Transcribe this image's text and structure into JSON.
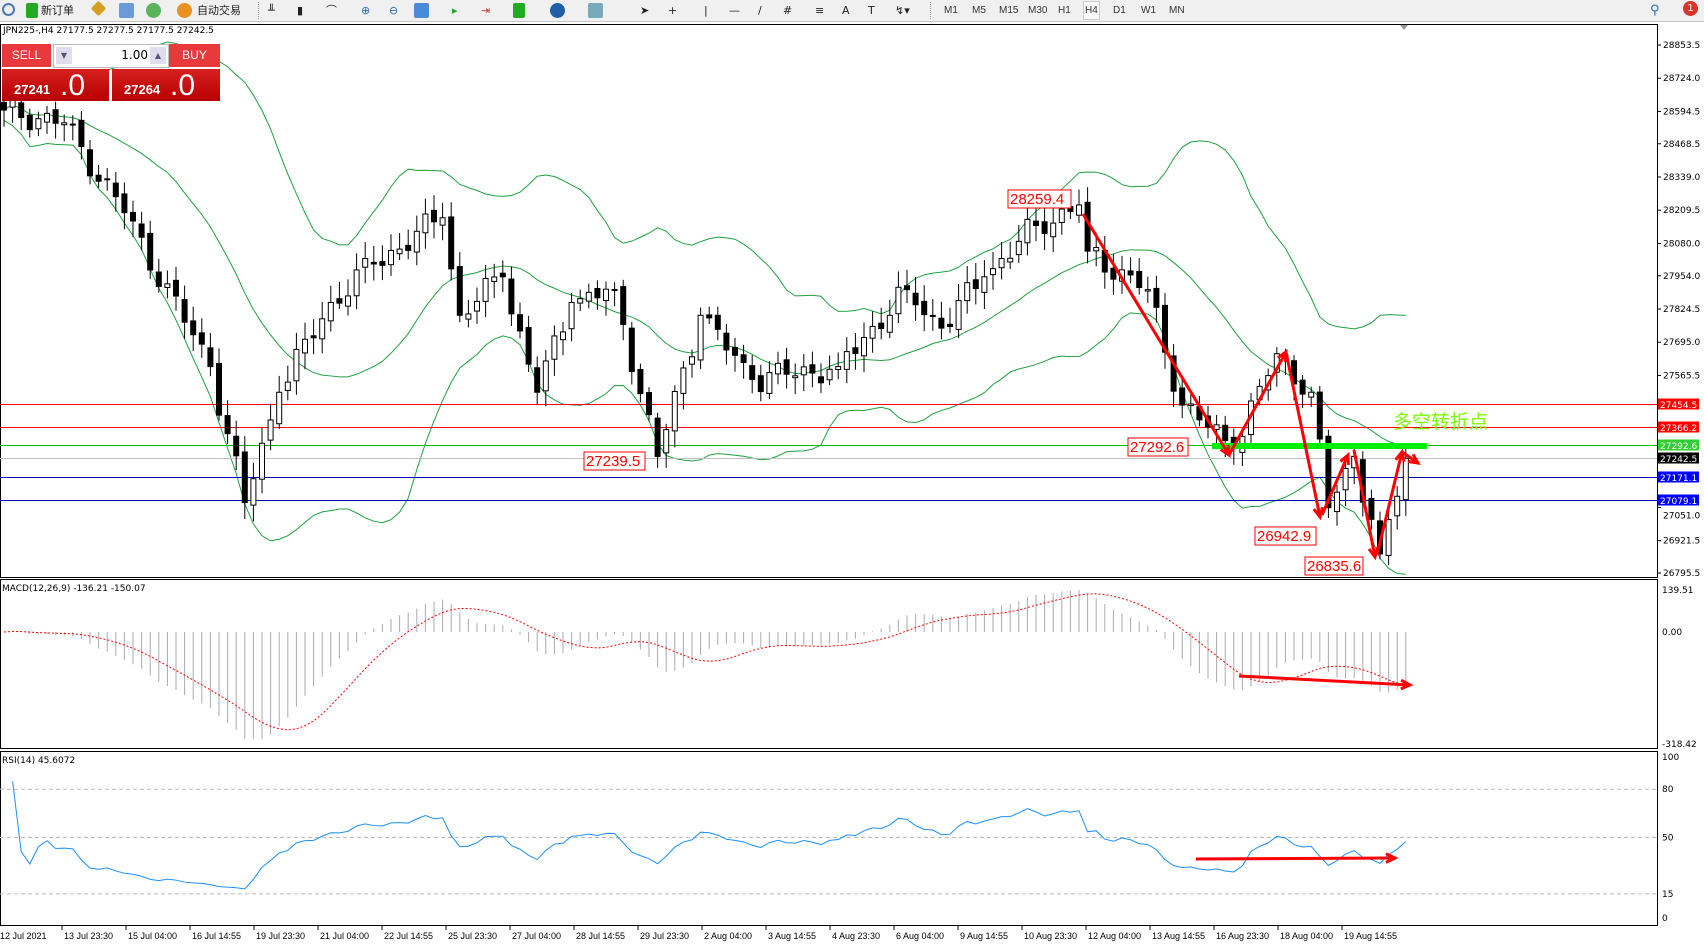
{
  "toolbar": {
    "new_order": "新订单",
    "auto_trading": "自动交易",
    "timeframes": [
      "M1",
      "M5",
      "M15",
      "M30",
      "H1",
      "H4",
      "D1",
      "W1",
      "MN"
    ],
    "active_timeframe": "H4",
    "notification_count": "1"
  },
  "chart_info": "JPN225-,H4  27177.5 27277.5 27177.5 27242.5",
  "trade_panel": {
    "sell_label": "SELL",
    "buy_label": "BUY",
    "lot": "1.00",
    "sell_price_small": "27241",
    "sell_price_big": ".0",
    "buy_price_small": "27264",
    "buy_price_big": ".0"
  },
  "price_axis": [
    "28853.5",
    "28724.0",
    "28594.5",
    "28468.5",
    "28339.0",
    "28209.5",
    "28080.0",
    "27954.0",
    "27824.5",
    "27695.0",
    "27565.5",
    "27051.0",
    "26921.5",
    "26795.5"
  ],
  "levels": [
    {
      "value": "27454.5",
      "color": "#ff0000",
      "bg": "#ff0000"
    },
    {
      "value": "27366.2",
      "color": "#ff0000",
      "bg": "#ff0000"
    },
    {
      "value": "27292.6",
      "color": "#00c000",
      "bg": "#32cd32"
    },
    {
      "value": "27242.5",
      "color": "#c0c0c0",
      "bg": "#000000"
    },
    {
      "value": "27171.1",
      "color": "#0000c0",
      "bg": "#0000ff"
    },
    {
      "value": "27079.1",
      "color": "#0000c0",
      "bg": "#0000ff"
    }
  ],
  "annotations": {
    "labels": [
      "28259.4",
      "27239.5",
      "27292.6",
      "26942.9",
      "26835.6"
    ],
    "turning_point": "多空转折点"
  },
  "macd": {
    "title": "MACD(12,26,9) -136.21 -150.07",
    "axis": [
      "139.51",
      "0.00",
      "-318.42"
    ]
  },
  "rsi": {
    "title": "RSI(14) 45.6072",
    "axis": [
      "100",
      "80",
      "50",
      "15",
      "0"
    ]
  },
  "time_axis": [
    "12 Jul 2021",
    "13 Jul 23:30",
    "15 Jul 04:00",
    "16 Jul 14:55",
    "19 Jul 23:30",
    "21 Jul 04:00",
    "22 Jul 14:55",
    "25 Jul 23:30",
    "27 Jul 04:00",
    "28 Jul 14:55",
    "29 Jul 23:30",
    "2 Aug 04:00",
    "3 Aug 14:55",
    "4 Aug 23:30",
    "6 Aug 04:00",
    "9 Aug 14:55",
    "10 Aug 23:30",
    "12 Aug 04:00",
    "13 Aug 14:55",
    "16 Aug 23:30",
    "18 Aug 04:00",
    "19 Aug 14:55"
  ],
  "chart_data": {
    "type": "candlestick",
    "symbol": "JPN225-",
    "timeframe": "H4",
    "ylim": [
      26795.5,
      28853.5
    ],
    "close_keypoints": [
      [
        0,
        28600
      ],
      [
        7,
        28550
      ],
      [
        14,
        28200
      ],
      [
        24,
        27600
      ],
      [
        28,
        27070
      ],
      [
        32,
        27500
      ],
      [
        38,
        27850
      ],
      [
        43,
        28000
      ],
      [
        51,
        28180
      ],
      [
        53,
        27800
      ],
      [
        58,
        27950
      ],
      [
        62,
        27500
      ],
      [
        66,
        27850
      ],
      [
        71,
        27900
      ],
      [
        76,
        27250
      ],
      [
        81,
        27800
      ],
      [
        87,
        27550
      ],
      [
        97,
        27600
      ],
      [
        105,
        27900
      ],
      [
        109,
        27750
      ],
      [
        114,
        27950
      ],
      [
        120,
        28150
      ],
      [
        125,
        28230
      ],
      [
        126,
        28050
      ],
      [
        133,
        27900
      ],
      [
        137,
        27450
      ],
      [
        143,
        27280
      ],
      [
        148,
        27650
      ],
      [
        152,
        27500
      ],
      [
        154,
        27050
      ],
      [
        157,
        27250
      ],
      [
        160,
        26870
      ],
      [
        163,
        27242
      ]
    ],
    "last_close": 27242.5,
    "colors": {
      "bollinger": "#20a040",
      "macd_signal": "#ff0000",
      "rsi": "#1e90ff",
      "annotation": "#ff0000",
      "turning": "#00ee00"
    }
  }
}
